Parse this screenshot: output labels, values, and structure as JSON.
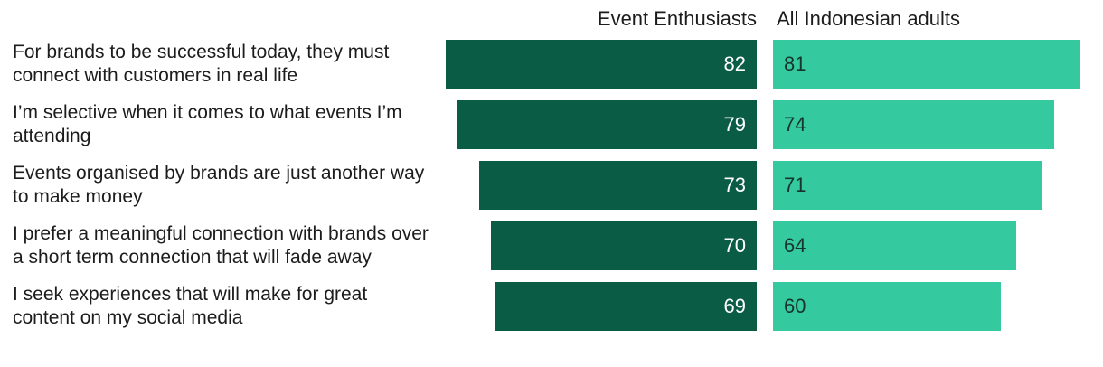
{
  "header": {
    "series1_label": "Event Enthusiasts",
    "series2_label": "All Indonesian adults"
  },
  "chart_data": {
    "type": "bar",
    "orientation": "horizontal",
    "title": "",
    "xlabel": "",
    "ylabel": "",
    "xlim": [
      0,
      100
    ],
    "legend_position": "top",
    "series_names": [
      "Event Enthusiasts",
      "All Indonesian adults"
    ],
    "colors": {
      "event_enthusiasts": "#0b5c44",
      "all_indonesian_adults": "#34c99e",
      "text": "#1c1c1c",
      "value_on_dark": "#ffffff",
      "value_on_teal": "#17352c"
    },
    "rows": [
      {
        "label": "For brands to be successful today, they must connect with customers in real life",
        "ee": 82,
        "all": 81
      },
      {
        "label": "I’m selective when it comes to what events I’m attending",
        "ee": 79,
        "all": 74
      },
      {
        "label": "Events organised by brands are just another way to make money",
        "ee": 73,
        "all": 71
      },
      {
        "label": "I prefer a meaningful connection with brands over a short term connection that will fade away",
        "ee": 70,
        "all": 64
      },
      {
        "label": "I seek experiences that will make for great content on my social media",
        "ee": 69,
        "all": 60
      }
    ]
  }
}
